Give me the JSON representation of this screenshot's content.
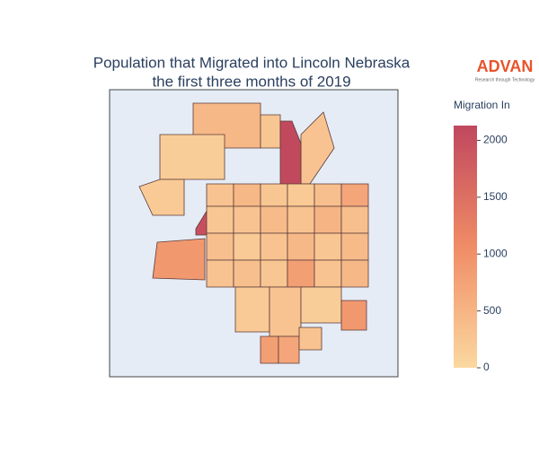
{
  "chart_data": {
    "type": "choropleth",
    "title": [
      "Population that Migrated into Lincoln Nebraska",
      "the first three months of 2019"
    ],
    "colorbar_title": "Migration In",
    "zlim": [
      0,
      2130
    ],
    "zticks": [
      0,
      500,
      1000,
      1500,
      2000
    ],
    "colorscale": [
      [
        0,
        "#fbd8a0"
      ],
      [
        0.5,
        "#f08c66"
      ],
      [
        1,
        "#c0475e"
      ]
    ],
    "values": [
      450,
      250,
      300,
      2100,
      150,
      200,
      2000,
      1900,
      900,
      300,
      450,
      250,
      200,
      350,
      700,
      250,
      300,
      400,
      300,
      500,
      350,
      350,
      200,
      300,
      450,
      250,
      400,
      300,
      350,
      250,
      800,
      300,
      450,
      200,
      300,
      150,
      900,
      800,
      700,
      300
    ],
    "logo": {
      "name": "ADVAN",
      "tagline": "Research through Technology"
    }
  }
}
